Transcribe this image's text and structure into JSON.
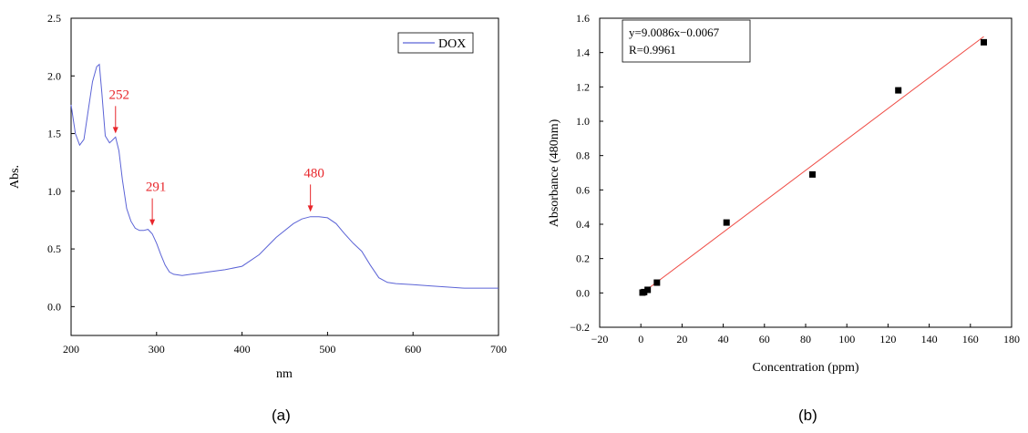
{
  "chart_data": [
    {
      "type": "line",
      "xlabel": "nm",
      "ylabel": "Abs.",
      "xlim": [
        200,
        700
      ],
      "ylim": [
        -0.25,
        2.5
      ],
      "xticks": [
        200,
        300,
        400,
        500,
        600,
        700
      ],
      "yticks": [
        0.0,
        0.5,
        1.0,
        1.5,
        2.0,
        2.5
      ],
      "ytick_labels": [
        "0.0",
        "0.5",
        "1.0",
        "1.5",
        "2.0",
        "2.5"
      ],
      "legend": {
        "placement": "top-right",
        "entries": [
          "DOX"
        ]
      },
      "grid": false,
      "series": [
        {
          "name": "DOX",
          "color": "#5b63d6",
          "x": [
            200,
            205,
            210,
            215,
            220,
            225,
            230,
            233,
            236,
            240,
            245,
            248,
            252,
            256,
            260,
            265,
            270,
            275,
            280,
            285,
            290,
            295,
            300,
            305,
            310,
            315,
            320,
            330,
            340,
            350,
            360,
            380,
            400,
            420,
            440,
            460,
            470,
            480,
            490,
            500,
            510,
            520,
            530,
            540,
            550,
            560,
            570,
            580,
            600,
            620,
            640,
            660,
            680,
            700
          ],
          "y": [
            1.75,
            1.5,
            1.4,
            1.45,
            1.7,
            1.95,
            2.08,
            2.1,
            1.85,
            1.48,
            1.42,
            1.44,
            1.47,
            1.35,
            1.1,
            0.85,
            0.74,
            0.68,
            0.66,
            0.66,
            0.67,
            0.63,
            0.55,
            0.45,
            0.36,
            0.3,
            0.28,
            0.27,
            0.28,
            0.29,
            0.3,
            0.32,
            0.35,
            0.45,
            0.6,
            0.72,
            0.76,
            0.78,
            0.78,
            0.77,
            0.72,
            0.63,
            0.55,
            0.48,
            0.36,
            0.25,
            0.21,
            0.2,
            0.19,
            0.18,
            0.17,
            0.16,
            0.16,
            0.16
          ]
        }
      ],
      "annotations": [
        {
          "label": "252",
          "x": 252,
          "y": 1.47
        },
        {
          "label": "291",
          "x": 295,
          "y": 0.67
        },
        {
          "label": "480",
          "x": 480,
          "y": 0.79
        }
      ],
      "annotation_color": "#e8262b"
    },
    {
      "type": "scatter",
      "xlabel": "Concentration (ppm)",
      "ylabel": "Absorbance (480nm)",
      "xlim": [
        -20,
        180
      ],
      "ylim": [
        -0.2,
        1.6
      ],
      "xticks": [
        -20,
        0,
        20,
        40,
        60,
        80,
        100,
        120,
        140,
        160,
        180
      ],
      "xtick_labels": [
        "−20",
        "0",
        "20",
        "40",
        "60",
        "80",
        "100",
        "120",
        "140",
        "160",
        "180"
      ],
      "yticks": [
        -0.2,
        0.0,
        0.2,
        0.4,
        0.6,
        0.8,
        1.0,
        1.2,
        1.4,
        1.6
      ],
      "ytick_labels": [
        "−0.2",
        "0.0",
        "0.2",
        "0.4",
        "0.6",
        "0.8",
        "1.0",
        "1.2",
        "1.4",
        "1.6"
      ],
      "grid": false,
      "points": {
        "x": [
          0.8,
          1.6,
          3.3,
          7.8,
          41.6,
          83.3,
          125,
          166.5
        ],
        "y": [
          0.002,
          0.005,
          0.018,
          0.06,
          0.41,
          0.69,
          1.18,
          1.46
        ]
      },
      "fit": {
        "color": "#ef4a43",
        "x_range": [
          0.8,
          166.5
        ],
        "slope_per_100": 0.90086,
        "intercept": -0.0067
      },
      "legend_text": {
        "equation": "y=9.0086x−0.0067",
        "r": "R=0.9961"
      }
    }
  ],
  "panels": {
    "a": "(a)",
    "b": "(b)"
  }
}
